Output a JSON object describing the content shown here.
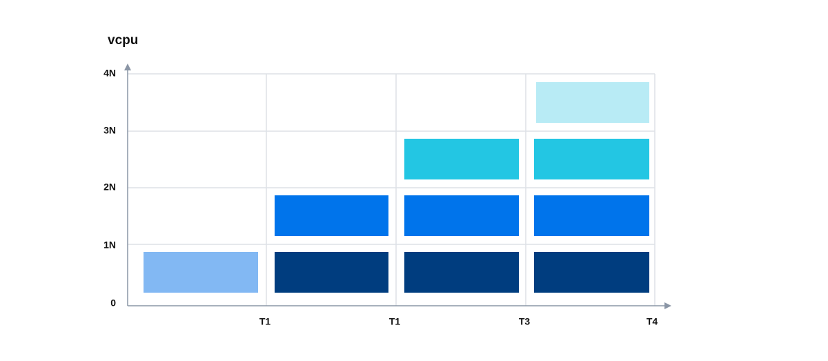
{
  "y_axis": {
    "label": "vcpu",
    "ticks": [
      "0",
      "1N",
      "2N",
      "3N",
      "4N"
    ]
  },
  "x_axis": {
    "ticks": [
      "T1",
      "T1",
      "T3",
      "T4"
    ]
  }
}
